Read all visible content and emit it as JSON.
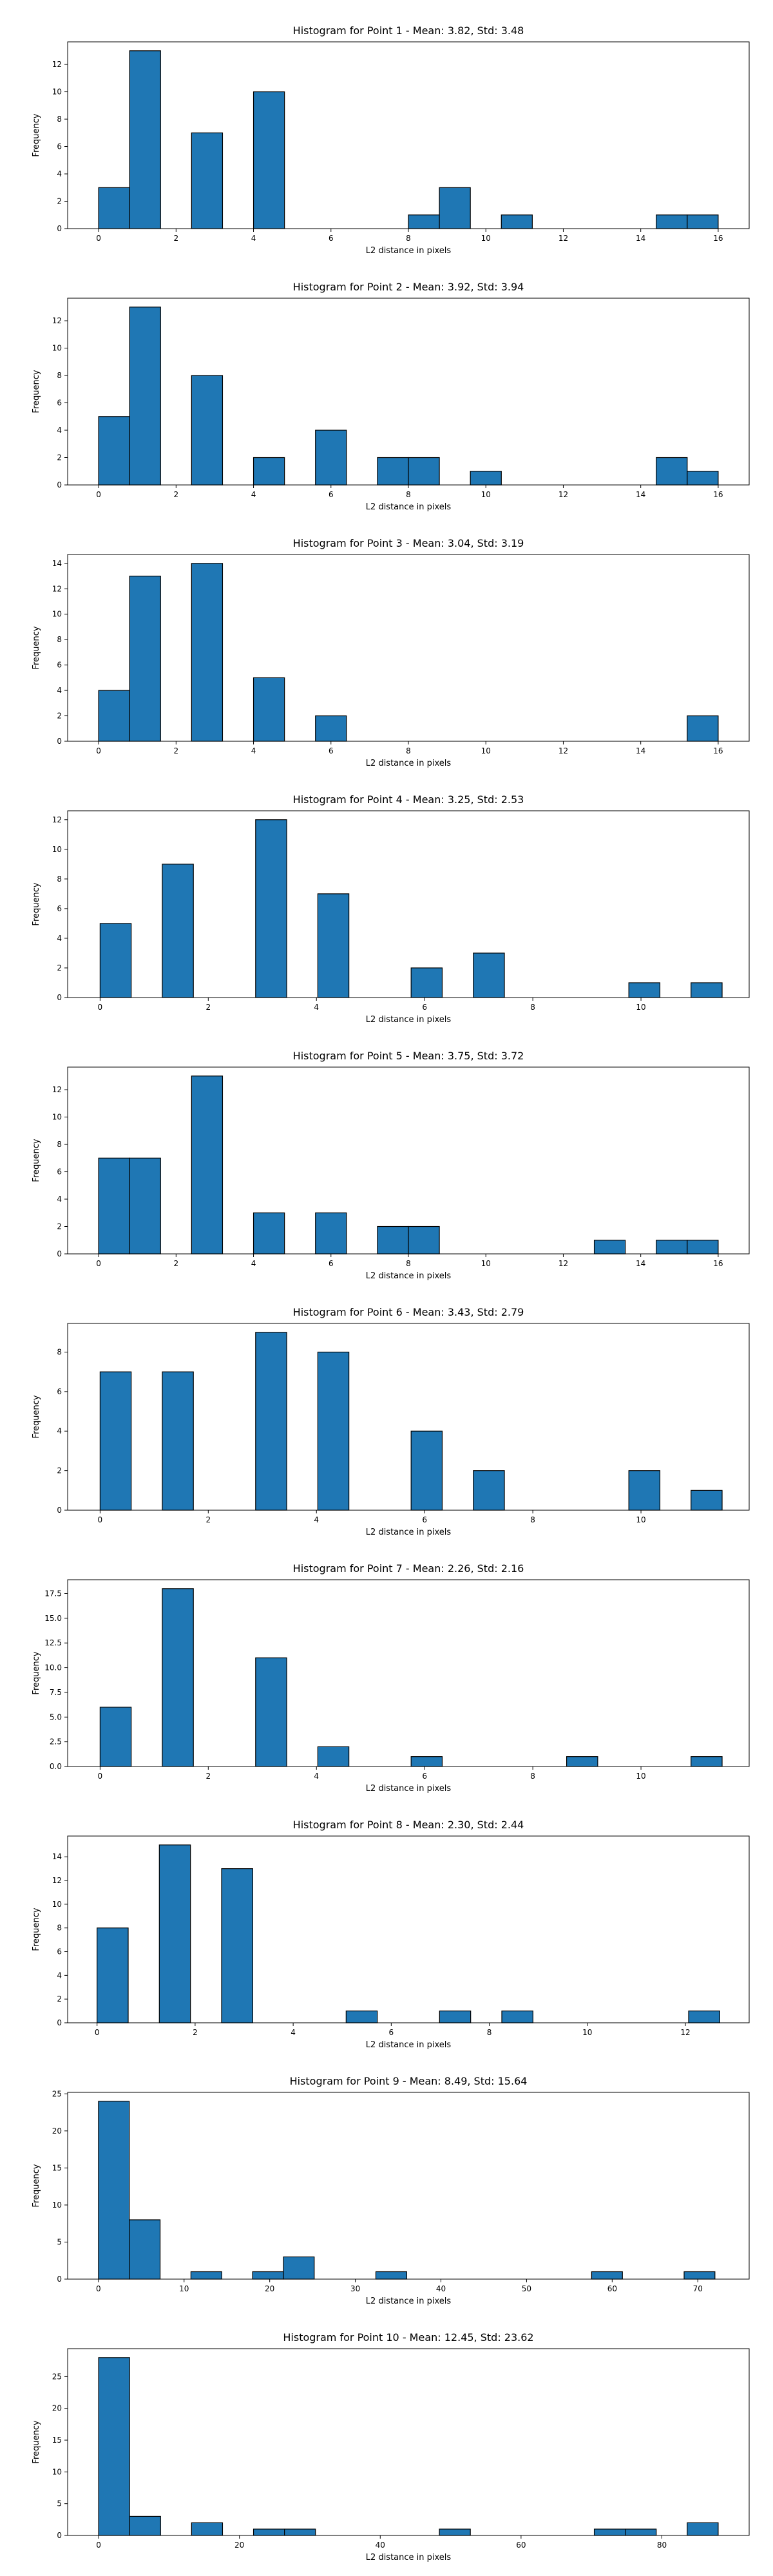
{
  "style": {
    "bar_color": "#1f77b4",
    "edge_color": "#000000"
  },
  "chart_data": [
    {
      "type": "bar",
      "title": "Histogram for Point 1 - Mean: 3.82, Std: 3.48",
      "xlabel": "L2 distance in pixels",
      "ylabel": "Frequency",
      "xlim": [
        -0.8,
        16.8
      ],
      "ylim": [
        0,
        13.65
      ],
      "xticks": [
        0,
        2,
        4,
        6,
        8,
        10,
        12,
        14,
        16
      ],
      "yticks": [
        0,
        2,
        4,
        6,
        8,
        10,
        12
      ],
      "bin_edges": [
        0,
        0.8,
        1.6,
        2.4,
        3.2,
        4.0,
        4.8,
        5.6,
        6.4,
        7.2,
        8.0,
        8.8,
        9.6,
        10.4,
        11.2,
        12.0,
        12.8,
        13.6,
        14.4,
        15.2,
        16.0
      ],
      "values": [
        3,
        13,
        0,
        7,
        0,
        10,
        0,
        0,
        0,
        0,
        1,
        3,
        0,
        1,
        0,
        0,
        0,
        0,
        1,
        1
      ]
    },
    {
      "type": "bar",
      "title": "Histogram for Point 2 - Mean: 3.92, Std: 3.94",
      "xlabel": "L2 distance in pixels",
      "ylabel": "Frequency",
      "xlim": [
        -0.8,
        16.8
      ],
      "ylim": [
        0,
        13.65
      ],
      "xticks": [
        0,
        2,
        4,
        6,
        8,
        10,
        12,
        14,
        16
      ],
      "yticks": [
        0,
        2,
        4,
        6,
        8,
        10,
        12
      ],
      "bin_edges": [
        0,
        0.8,
        1.6,
        2.4,
        3.2,
        4.0,
        4.8,
        5.6,
        6.4,
        7.2,
        8.0,
        8.8,
        9.6,
        10.4,
        11.2,
        12.0,
        12.8,
        13.6,
        14.4,
        15.2,
        16.0
      ],
      "values": [
        5,
        13,
        0,
        8,
        0,
        2,
        0,
        4,
        0,
        2,
        2,
        0,
        1,
        0,
        0,
        0,
        0,
        0,
        2,
        1
      ]
    },
    {
      "type": "bar",
      "title": "Histogram for Point 3 - Mean: 3.04, Std: 3.19",
      "xlabel": "L2 distance in pixels",
      "ylabel": "Frequency",
      "xlim": [
        -0.8,
        16.8
      ],
      "ylim": [
        0,
        14.7
      ],
      "xticks": [
        0,
        2,
        4,
        6,
        8,
        10,
        12,
        14,
        16
      ],
      "yticks": [
        0,
        2,
        4,
        6,
        8,
        10,
        12,
        14
      ],
      "bin_edges": [
        0,
        0.8,
        1.6,
        2.4,
        3.2,
        4.0,
        4.8,
        5.6,
        6.4,
        7.2,
        8.0,
        8.8,
        9.6,
        10.4,
        11.2,
        12.0,
        12.8,
        13.6,
        14.4,
        15.2,
        16.0
      ],
      "values": [
        4,
        13,
        0,
        14,
        0,
        5,
        0,
        2,
        0,
        0,
        0,
        0,
        0,
        0,
        0,
        0,
        0,
        0,
        0,
        2
      ]
    },
    {
      "type": "bar",
      "title": "Histogram for Point 4 - Mean: 3.25, Std: 2.53",
      "xlabel": "L2 distance in pixels",
      "ylabel": "Frequency",
      "xlim": [
        -0.6,
        12.0
      ],
      "ylim": [
        0,
        12.6
      ],
      "xticks": [
        0,
        2,
        4,
        6,
        8,
        10
      ],
      "yticks": [
        0,
        2,
        4,
        6,
        8,
        10,
        12
      ],
      "bin_edges": [
        0,
        0.575,
        1.15,
        1.725,
        2.3,
        2.875,
        3.45,
        4.025,
        4.6,
        5.175,
        5.75,
        6.325,
        6.9,
        7.475,
        8.05,
        8.625,
        9.2,
        9.775,
        10.35,
        10.925,
        11.5
      ],
      "values": [
        5,
        0,
        9,
        0,
        0,
        12,
        0,
        7,
        0,
        0,
        2,
        0,
        3,
        0,
        0,
        0,
        0,
        1,
        0,
        1
      ]
    },
    {
      "type": "bar",
      "title": "Histogram for Point 5 - Mean: 3.75, Std: 3.72",
      "xlabel": "L2 distance in pixels",
      "ylabel": "Frequency",
      "xlim": [
        -0.8,
        16.8
      ],
      "ylim": [
        0,
        13.65
      ],
      "xticks": [
        0,
        2,
        4,
        6,
        8,
        10,
        12,
        14,
        16
      ],
      "yticks": [
        0,
        2,
        4,
        6,
        8,
        10,
        12
      ],
      "bin_edges": [
        0,
        0.8,
        1.6,
        2.4,
        3.2,
        4.0,
        4.8,
        5.6,
        6.4,
        7.2,
        8.0,
        8.8,
        9.6,
        10.4,
        11.2,
        12.0,
        12.8,
        13.6,
        14.4,
        15.2,
        16.0
      ],
      "values": [
        7,
        7,
        0,
        13,
        0,
        3,
        0,
        3,
        0,
        2,
        2,
        0,
        0,
        0,
        0,
        0,
        1,
        0,
        1,
        1
      ]
    },
    {
      "type": "bar",
      "title": "Histogram for Point 6 - Mean: 3.43, Std: 2.79",
      "xlabel": "L2 distance in pixels",
      "ylabel": "Frequency",
      "xlim": [
        -0.6,
        12.0
      ],
      "ylim": [
        0,
        9.45
      ],
      "xticks": [
        0,
        2,
        4,
        6,
        8,
        10
      ],
      "yticks": [
        0,
        2,
        4,
        6,
        8
      ],
      "bin_edges": [
        0,
        0.575,
        1.15,
        1.725,
        2.3,
        2.875,
        3.45,
        4.025,
        4.6,
        5.175,
        5.75,
        6.325,
        6.9,
        7.475,
        8.05,
        8.625,
        9.2,
        9.775,
        10.35,
        10.925,
        11.5
      ],
      "values": [
        7,
        0,
        7,
        0,
        0,
        9,
        0,
        8,
        0,
        0,
        4,
        0,
        2,
        0,
        0,
        0,
        0,
        2,
        0,
        1
      ]
    },
    {
      "type": "bar",
      "title": "Histogram for Point 7 - Mean: 2.26, Std: 2.16",
      "xlabel": "L2 distance in pixels",
      "ylabel": "Frequency",
      "xlim": [
        -0.6,
        12.0
      ],
      "ylim": [
        0,
        18.9
      ],
      "xticks": [
        0,
        2,
        4,
        6,
        8,
        10
      ],
      "yticks": [
        0.0,
        2.5,
        5.0,
        7.5,
        10.0,
        12.5,
        15.0,
        17.5
      ],
      "ytick_labels": [
        "0.0",
        "2.5",
        "5.0",
        "7.5",
        "10.0",
        "12.5",
        "15.0",
        "17.5"
      ],
      "bin_edges": [
        0,
        0.575,
        1.15,
        1.725,
        2.3,
        2.875,
        3.45,
        4.025,
        4.6,
        5.175,
        5.75,
        6.325,
        6.9,
        7.475,
        8.05,
        8.625,
        9.2,
        9.775,
        10.35,
        10.925,
        11.5
      ],
      "values": [
        6,
        0,
        18,
        0,
        0,
        11,
        0,
        2,
        0,
        0,
        1,
        0,
        0,
        0,
        0,
        1,
        0,
        0,
        0,
        1
      ]
    },
    {
      "type": "bar",
      "title": "Histogram for Point 8 - Mean: 2.30, Std: 2.44",
      "xlabel": "L2 distance in pixels",
      "ylabel": "Frequency",
      "xlim": [
        -0.6,
        13.3
      ],
      "ylim": [
        0,
        15.75
      ],
      "xticks": [
        0,
        2,
        4,
        6,
        8,
        10,
        12
      ],
      "yticks": [
        0,
        2,
        4,
        6,
        8,
        10,
        12,
        14
      ],
      "bin_edges": [
        0,
        0.635,
        1.27,
        1.905,
        2.54,
        3.175,
        3.81,
        4.445,
        5.08,
        5.715,
        6.35,
        6.985,
        7.62,
        8.255,
        8.89,
        9.525,
        10.16,
        10.795,
        11.43,
        12.065,
        12.7
      ],
      "values": [
        8,
        0,
        15,
        0,
        13,
        0,
        0,
        0,
        1,
        0,
        0,
        1,
        0,
        1,
        0,
        0,
        0,
        0,
        0,
        1
      ]
    },
    {
      "type": "bar",
      "title": "Histogram for Point 9 - Mean: 8.49, Std: 15.64",
      "xlabel": "L2 distance in pixels",
      "ylabel": "Frequency",
      "xlim": [
        -3.6,
        76.0
      ],
      "ylim": [
        0,
        25.2
      ],
      "xticks": [
        0,
        10,
        20,
        30,
        40,
        50,
        60,
        70
      ],
      "yticks": [
        0,
        5,
        10,
        15,
        20,
        25
      ],
      "bin_edges": [
        0,
        3.6,
        7.2,
        10.8,
        14.4,
        18.0,
        21.6,
        25.2,
        28.8,
        32.4,
        36.0,
        39.6,
        43.2,
        46.8,
        50.4,
        54.0,
        57.6,
        61.2,
        64.8,
        68.4,
        72.0
      ],
      "values": [
        24,
        8,
        0,
        1,
        0,
        1,
        3,
        0,
        0,
        1,
        0,
        0,
        0,
        0,
        0,
        0,
        1,
        0,
        0,
        1
      ]
    },
    {
      "type": "bar",
      "title": "Histogram for Point 10 - Mean: 12.45, Std: 23.62",
      "xlabel": "L2 distance in pixels",
      "ylabel": "Frequency",
      "xlim": [
        -4.4,
        92.4
      ],
      "ylim": [
        0,
        29.4
      ],
      "xticks": [
        0,
        20,
        40,
        60,
        80
      ],
      "yticks": [
        0,
        5,
        10,
        15,
        20,
        25
      ],
      "bin_edges": [
        0,
        4.4,
        8.8,
        13.2,
        17.6,
        22.0,
        26.4,
        30.8,
        35.2,
        39.6,
        44.0,
        48.4,
        52.8,
        57.2,
        61.6,
        66.0,
        70.4,
        74.8,
        79.2,
        83.6,
        88.0
      ],
      "values": [
        28,
        3,
        0,
        2,
        0,
        1,
        1,
        0,
        0,
        0,
        0,
        1,
        0,
        0,
        0,
        0,
        1,
        1,
        0,
        2
      ]
    }
  ]
}
